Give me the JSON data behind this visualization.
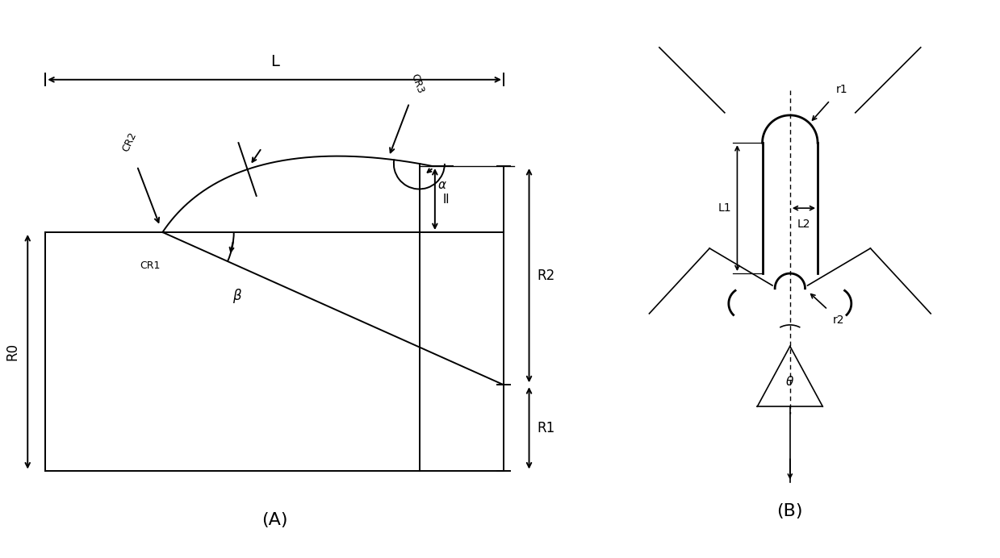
{
  "bg_color": "#ffffff",
  "line_color": "#000000",
  "fig_width": 12.39,
  "fig_height": 6.92,
  "label_A": "(A)",
  "label_B": "(B)",
  "labels_A": {
    "L": "L",
    "R0": "R0",
    "R1": "R1",
    "R2": "R2",
    "CR1": "CR1",
    "CR2": "CR2",
    "CR3": "CR3",
    "ll": "ll",
    "alpha": "α",
    "beta": "β"
  },
  "labels_B": {
    "r1": "r1",
    "r2": "r2",
    "L1": "L1",
    "L2": "L2",
    "theta": "θ"
  }
}
